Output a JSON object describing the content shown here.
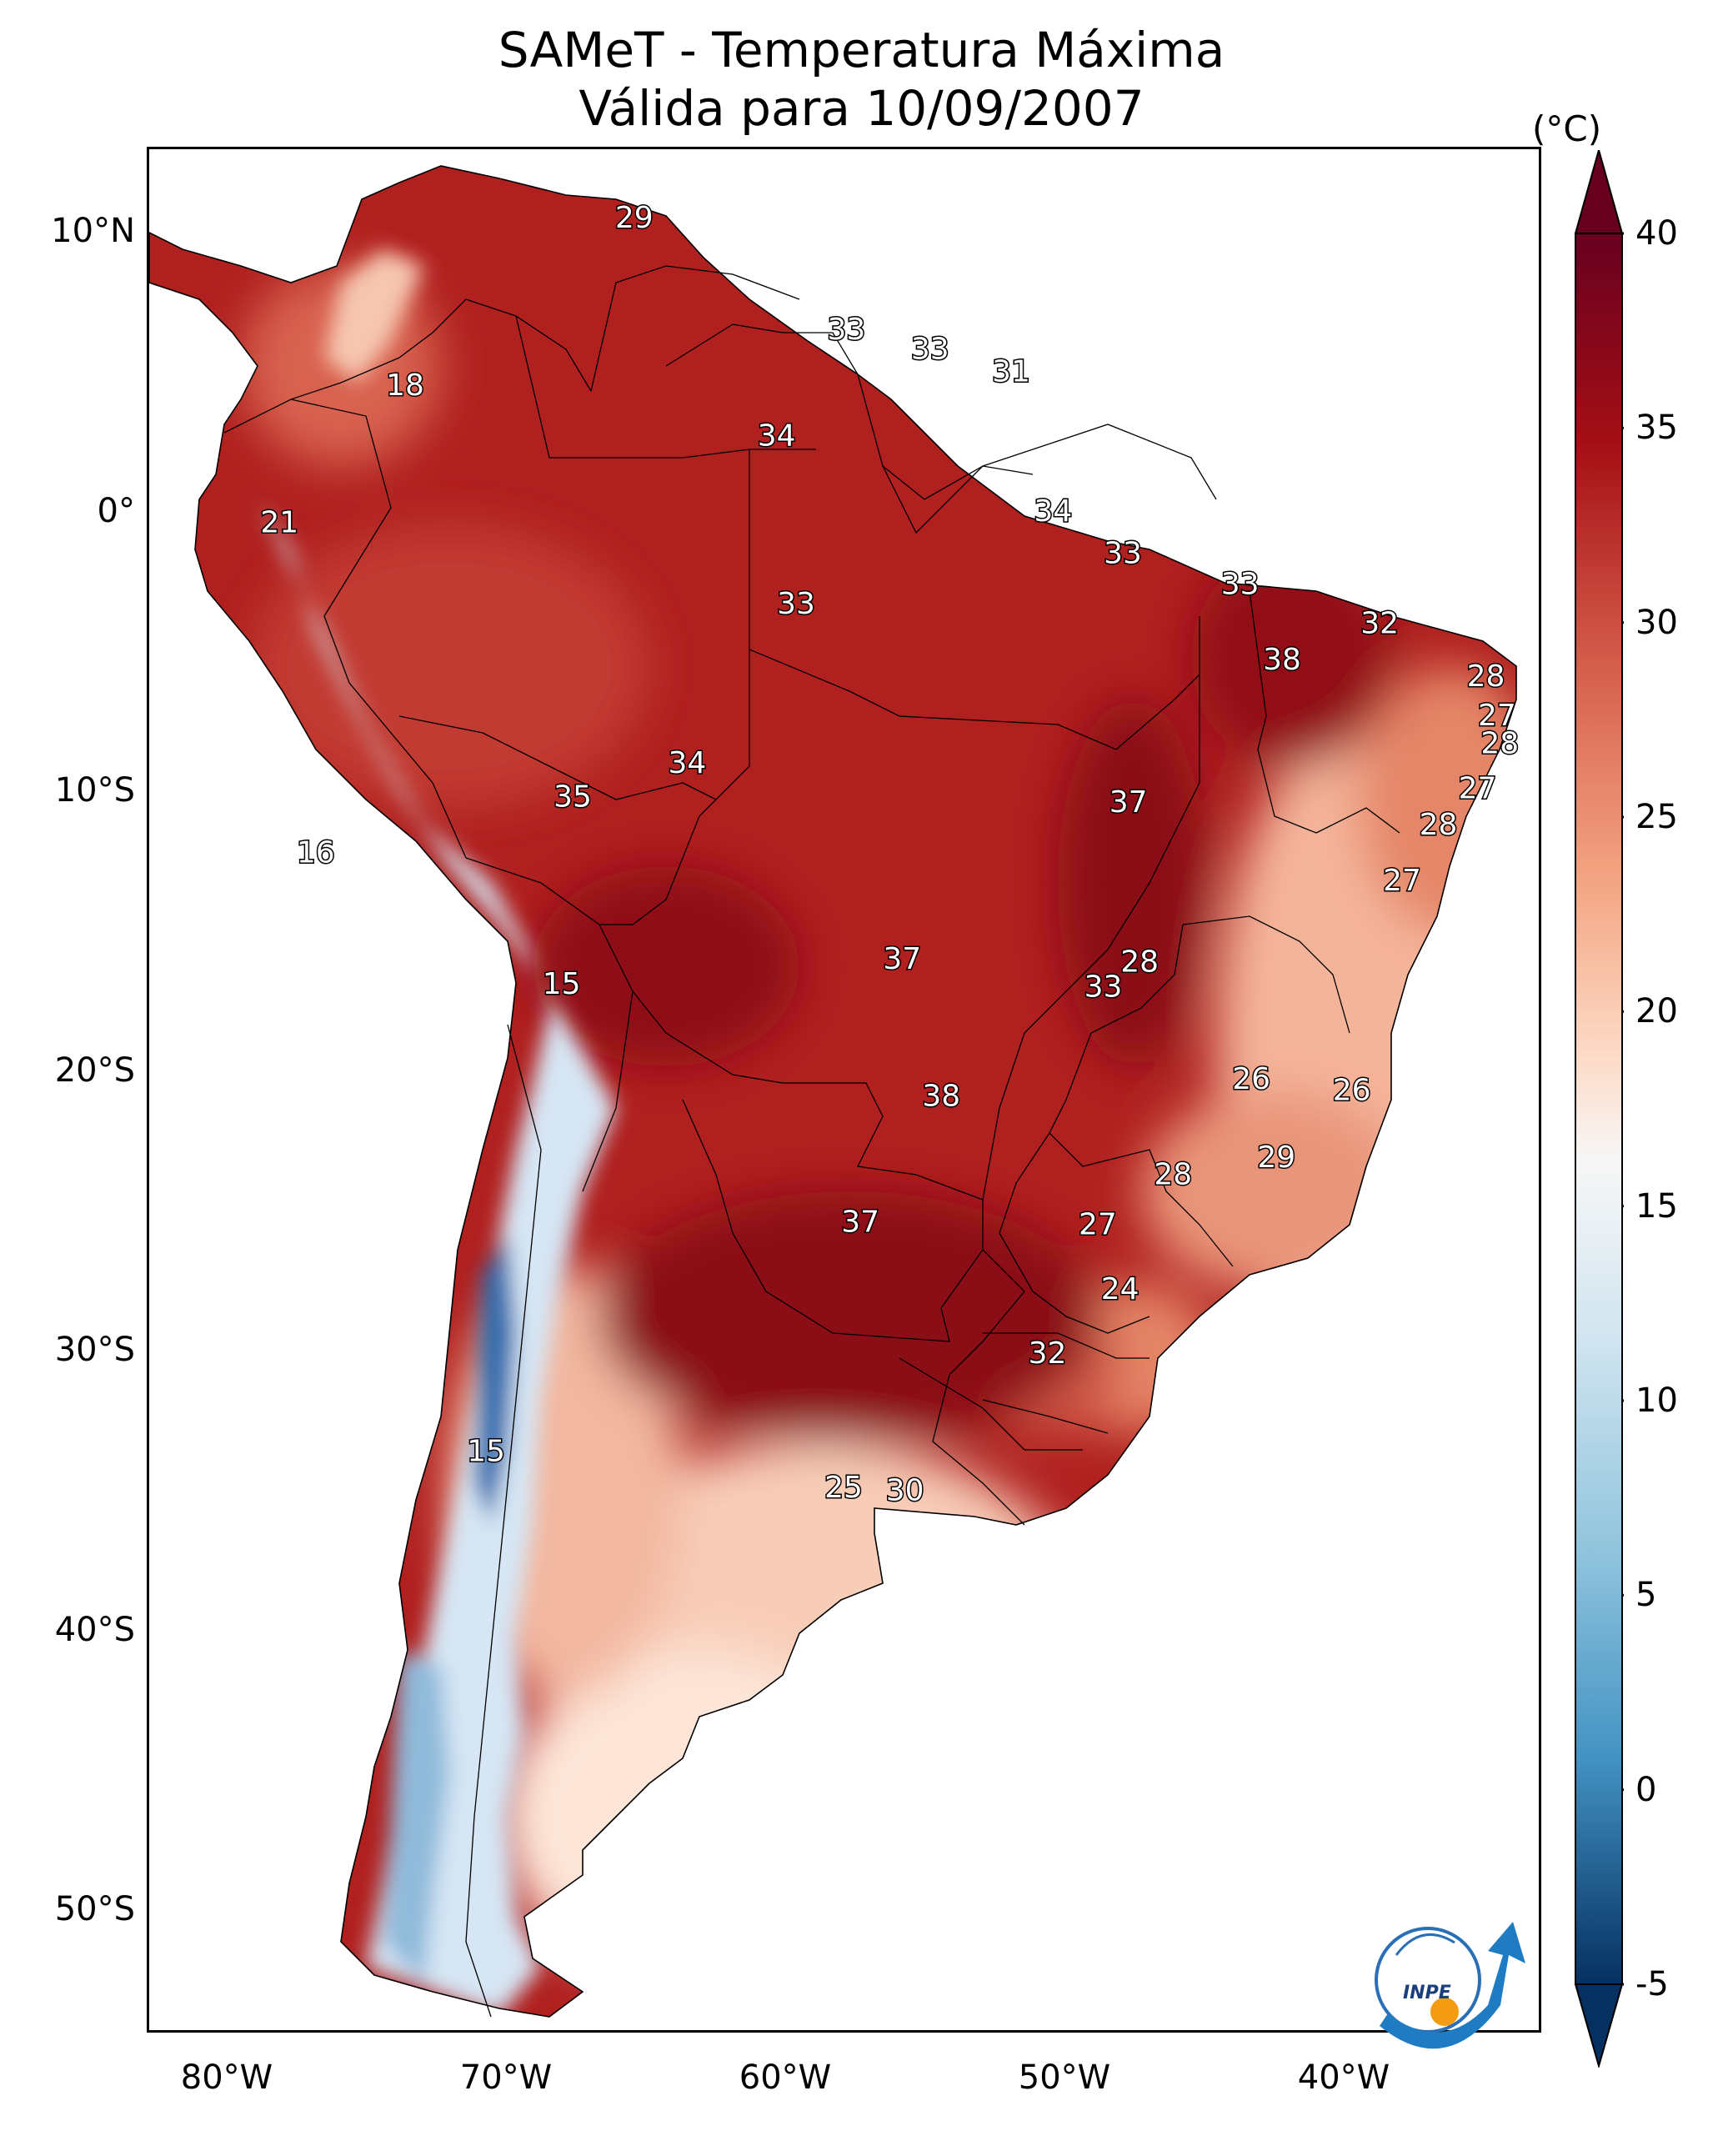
{
  "title": {
    "line1": "SAMeT - Temperatura Máxima",
    "line2": "Válida para 10/09/2007"
  },
  "unit": "(°C)",
  "lat_ticks": [
    "10°N",
    "0°",
    "10°S",
    "20°S",
    "30°S",
    "40°S",
    "50°S"
  ],
  "lon_ticks": [
    "80°W",
    "70°W",
    "60°W",
    "50°W",
    "40°W"
  ],
  "colorbar": {
    "ticks": [
      "40",
      "35",
      "30",
      "25",
      "20",
      "15",
      "10",
      "5",
      "0",
      "-5"
    ],
    "min": -5,
    "max": 40
  },
  "logo": {
    "text": "INPE"
  },
  "colors": {
    "ocean": "#ffffff",
    "hot": "#a50f15",
    "very_hot": "#7f0a12",
    "warm": "#c8403a",
    "mild": "#f0a385",
    "cool": "#fde3d4",
    "cold": "#c6dbef",
    "andes": "#4a8cc4"
  },
  "map_labels": {
    "items": [
      {
        "text": "29",
        "lon": -65.5,
        "lat": 10.6
      },
      {
        "text": "18",
        "lon": -73.7,
        "lat": 4.6
      },
      {
        "text": "33",
        "lon": -57.9,
        "lat": 6.6
      },
      {
        "text": "33",
        "lon": -54.9,
        "lat": 5.9
      },
      {
        "text": "31",
        "lon": -52.0,
        "lat": 5.1
      },
      {
        "text": "34",
        "lon": -60.4,
        "lat": 2.8
      },
      {
        "text": "21",
        "lon": -78.2,
        "lat": -0.3
      },
      {
        "text": "34",
        "lon": -50.5,
        "lat": 0.1
      },
      {
        "text": "33",
        "lon": -48.0,
        "lat": -1.4
      },
      {
        "text": "33",
        "lon": -43.8,
        "lat": -2.5
      },
      {
        "text": "33",
        "lon": -59.7,
        "lat": -3.2
      },
      {
        "text": "32",
        "lon": -38.8,
        "lat": -3.9
      },
      {
        "text": "38",
        "lon": -42.3,
        "lat": -5.2
      },
      {
        "text": "28",
        "lon": -35.0,
        "lat": -5.8
      },
      {
        "text": "27",
        "lon": -34.6,
        "lat": -7.2
      },
      {
        "text": "28",
        "lon": -34.5,
        "lat": -8.2
      },
      {
        "text": "34",
        "lon": -63.6,
        "lat": -8.9
      },
      {
        "text": "35",
        "lon": -67.7,
        "lat": -10.1
      },
      {
        "text": "37",
        "lon": -47.8,
        "lat": -10.3
      },
      {
        "text": "27",
        "lon": -35.3,
        "lat": -9.8
      },
      {
        "text": "28",
        "lon": -36.7,
        "lat": -11.1
      },
      {
        "text": "16",
        "lon": -76.9,
        "lat": -12.1
      },
      {
        "text": "27",
        "lon": -38.0,
        "lat": -13.1
      },
      {
        "text": "37",
        "lon": -55.9,
        "lat": -15.9
      },
      {
        "text": "28",
        "lon": -47.4,
        "lat": -16.0
      },
      {
        "text": "33",
        "lon": -48.7,
        "lat": -16.9
      },
      {
        "text": "15",
        "lon": -68.1,
        "lat": -16.8
      },
      {
        "text": "26",
        "lon": -43.4,
        "lat": -20.2
      },
      {
        "text": "26",
        "lon": -39.8,
        "lat": -20.6
      },
      {
        "text": "38",
        "lon": -54.5,
        "lat": -20.8
      },
      {
        "text": "29",
        "lon": -42.5,
        "lat": -23.0
      },
      {
        "text": "28",
        "lon": -46.2,
        "lat": -23.6
      },
      {
        "text": "37",
        "lon": -57.4,
        "lat": -25.3
      },
      {
        "text": "27",
        "lon": -48.9,
        "lat": -25.4
      },
      {
        "text": "24",
        "lon": -48.1,
        "lat": -27.7
      },
      {
        "text": "32",
        "lon": -50.7,
        "lat": -30.0
      },
      {
        "text": "15",
        "lon": -70.8,
        "lat": -33.5
      },
      {
        "text": "25",
        "lon": -58.0,
        "lat": -34.8
      },
      {
        "text": "30",
        "lon": -55.8,
        "lat": -34.9
      }
    ]
  }
}
